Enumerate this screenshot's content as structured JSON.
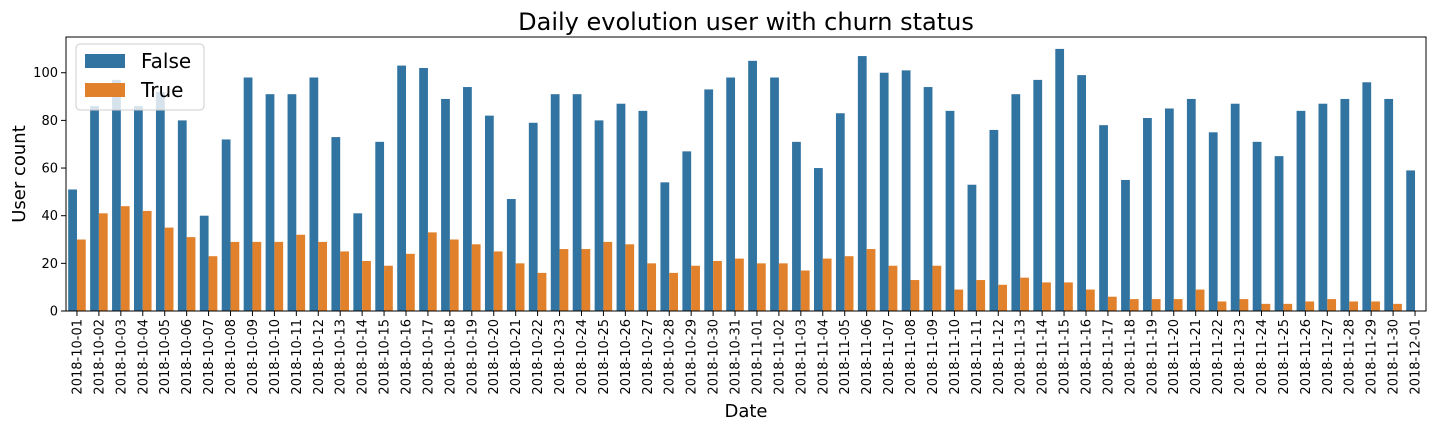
{
  "chart_data": {
    "type": "bar",
    "title": "Daily evolution user with churn status",
    "xlabel": "Date",
    "ylabel": "User count",
    "ylim": [
      0,
      115
    ],
    "yticks": [
      0,
      20,
      40,
      60,
      80,
      100
    ],
    "grid": false,
    "legend_position": "top-left",
    "categories": [
      "2018-10-01",
      "2018-10-02",
      "2018-10-03",
      "2018-10-04",
      "2018-10-05",
      "2018-10-06",
      "2018-10-07",
      "2018-10-08",
      "2018-10-09",
      "2018-10-10",
      "2018-10-11",
      "2018-10-12",
      "2018-10-13",
      "2018-10-14",
      "2018-10-15",
      "2018-10-16",
      "2018-10-17",
      "2018-10-18",
      "2018-10-19",
      "2018-10-20",
      "2018-10-21",
      "2018-10-22",
      "2018-10-23",
      "2018-10-24",
      "2018-10-25",
      "2018-10-26",
      "2018-10-27",
      "2018-10-28",
      "2018-10-29",
      "2018-10-30",
      "2018-10-31",
      "2018-11-01",
      "2018-11-02",
      "2018-11-03",
      "2018-11-04",
      "2018-11-05",
      "2018-11-06",
      "2018-11-07",
      "2018-11-08",
      "2018-11-09",
      "2018-11-10",
      "2018-11-11",
      "2018-11-12",
      "2018-11-13",
      "2018-11-14",
      "2018-11-15",
      "2018-11-16",
      "2018-11-17",
      "2018-11-18",
      "2018-11-19",
      "2018-11-20",
      "2018-11-21",
      "2018-11-22",
      "2018-11-23",
      "2018-11-24",
      "2018-11-25",
      "2018-11-26",
      "2018-11-27",
      "2018-11-28",
      "2018-11-29",
      "2018-11-30",
      "2018-12-01"
    ],
    "series": [
      {
        "name": "False",
        "color": "#3274a1",
        "values": [
          51,
          86,
          97,
          86,
          92,
          80,
          40,
          72,
          98,
          91,
          91,
          98,
          73,
          41,
          71,
          103,
          102,
          89,
          94,
          82,
          47,
          79,
          91,
          91,
          80,
          87,
          84,
          54,
          67,
          93,
          98,
          105,
          98,
          71,
          60,
          83,
          107,
          100,
          101,
          94,
          84,
          53,
          76,
          91,
          97,
          110,
          99,
          78,
          55,
          81,
          85,
          89,
          75,
          87,
          71,
          65,
          84,
          87,
          89,
          96,
          89,
          59
        ]
      },
      {
        "name": "True",
        "color": "#e1812c",
        "values": [
          30,
          41,
          44,
          42,
          35,
          31,
          23,
          29,
          29,
          29,
          32,
          29,
          25,
          21,
          19,
          24,
          33,
          30,
          28,
          25,
          20,
          16,
          26,
          26,
          29,
          28,
          20,
          16,
          19,
          21,
          22,
          20,
          20,
          17,
          22,
          23,
          26,
          19,
          13,
          19,
          9,
          13,
          11,
          14,
          12,
          12,
          9,
          6,
          5,
          5,
          5,
          9,
          4,
          5,
          3,
          3,
          4,
          5,
          4,
          4,
          3,
          null
        ]
      }
    ]
  }
}
